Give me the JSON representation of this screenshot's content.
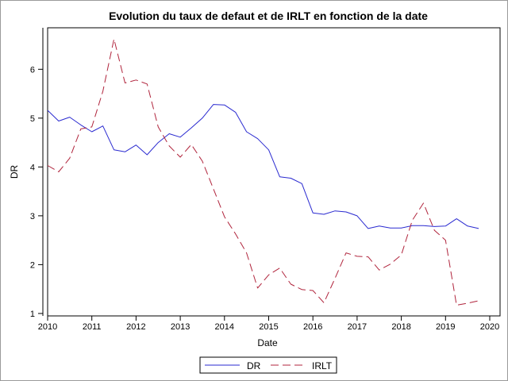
{
  "chart_data": {
    "type": "line",
    "title": "Evolution du taux de defaut et de IRLT en fonction de la date",
    "xlabel": "Date",
    "ylabel": "DR",
    "xlim": [
      2010,
      2020
    ],
    "ylim": [
      0.95,
      6.85
    ],
    "x_ticks": [
      2010,
      2011,
      2012,
      2013,
      2014,
      2015,
      2016,
      2017,
      2018,
      2019,
      2020
    ],
    "y_ticks": [
      1,
      2,
      3,
      4,
      5,
      6
    ],
    "grid": false,
    "legend_position": "bottom",
    "series": [
      {
        "name": "DR",
        "color": "#2a2ad0",
        "style": "solid",
        "x": [
          2010.0,
          2010.25,
          2010.5,
          2010.75,
          2011.0,
          2011.25,
          2011.5,
          2011.75,
          2012.0,
          2012.25,
          2012.5,
          2012.75,
          2013.0,
          2013.25,
          2013.5,
          2013.75,
          2014.0,
          2014.25,
          2014.5,
          2014.75,
          2015.0,
          2015.25,
          2015.5,
          2015.75,
          2016.0,
          2016.25,
          2016.5,
          2016.75,
          2017.0,
          2017.25,
          2017.5,
          2017.75,
          2018.0,
          2018.25,
          2018.5,
          2018.75,
          2019.0,
          2019.25,
          2019.5,
          2019.75
        ],
        "values": [
          5.16,
          4.94,
          5.02,
          4.86,
          4.72,
          4.84,
          4.35,
          4.31,
          4.45,
          4.25,
          4.5,
          4.68,
          4.61,
          4.8,
          5.0,
          5.28,
          5.27,
          5.12,
          4.72,
          4.58,
          4.35,
          3.8,
          3.77,
          3.66,
          3.06,
          3.03,
          3.1,
          3.08,
          3.0,
          2.74,
          2.79,
          2.75,
          2.75,
          2.8,
          2.8,
          2.78,
          2.79,
          2.94,
          2.79,
          2.74
        ]
      },
      {
        "name": "IRLT",
        "color": "#b0243c",
        "style": "dashed",
        "x": [
          2010.0,
          2010.25,
          2010.5,
          2010.75,
          2011.0,
          2011.25,
          2011.5,
          2011.75,
          2012.0,
          2012.25,
          2012.5,
          2012.75,
          2013.0,
          2013.25,
          2013.5,
          2013.75,
          2014.0,
          2014.25,
          2014.5,
          2014.75,
          2015.0,
          2015.25,
          2015.5,
          2015.75,
          2016.0,
          2016.25,
          2016.5,
          2016.75,
          2017.0,
          2017.25,
          2017.5,
          2017.75,
          2018.0,
          2018.25,
          2018.5,
          2018.75,
          2019.0,
          2019.25,
          2019.5,
          2019.75
        ],
        "values": [
          4.03,
          3.9,
          4.18,
          4.78,
          4.82,
          5.55,
          6.62,
          5.72,
          5.78,
          5.7,
          4.82,
          4.43,
          4.2,
          4.46,
          4.12,
          3.55,
          2.98,
          2.63,
          2.24,
          1.52,
          1.79,
          1.93,
          1.6,
          1.49,
          1.47,
          1.22,
          1.72,
          2.24,
          2.17,
          2.16,
          1.89,
          2.01,
          2.2,
          2.91,
          3.26,
          2.7,
          2.5,
          1.17,
          1.21,
          1.26
        ]
      }
    ]
  }
}
